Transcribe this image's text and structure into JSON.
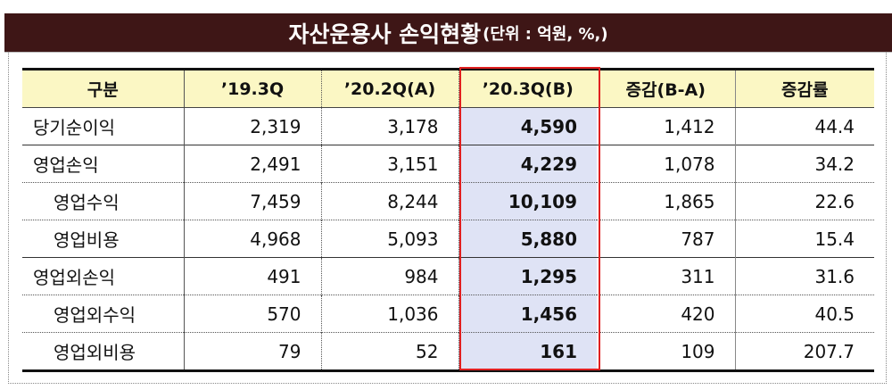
{
  "title": {
    "main": "자산운용사 손익현황",
    "unit": "(단위 : 억원, %,)"
  },
  "table": {
    "headers": [
      "구분",
      "’19.3Q",
      "’20.2Q(A)",
      "’20.3Q(B)",
      "증감(B-A)",
      "증감률"
    ],
    "rows": [
      {
        "label": "당기순이익",
        "level": 0,
        "values": [
          "2,319",
          "3,178",
          "4,590",
          "1,412",
          "44.4"
        ]
      },
      {
        "label": "영업손익",
        "level": 0,
        "values": [
          "2,491",
          "3,151",
          "4,229",
          "1,078",
          "34.2"
        ]
      },
      {
        "label": "영업수익",
        "level": 1,
        "values": [
          "7,459",
          "8,244",
          "10,109",
          "1,865",
          "22.6"
        ]
      },
      {
        "label": "영업비용",
        "level": 1,
        "values": [
          "4,968",
          "5,093",
          "5,880",
          "787",
          "15.4"
        ]
      },
      {
        "label": "영업외손익",
        "level": 0,
        "values": [
          "491",
          "984",
          "1,295",
          "311",
          "31.6"
        ]
      },
      {
        "label": "영업외수익",
        "level": 1,
        "values": [
          "570",
          "1,036",
          "1,456",
          "420",
          "40.5"
        ]
      },
      {
        "label": "영업외비용",
        "level": 1,
        "values": [
          "79",
          "52",
          "161",
          "109",
          "207.7"
        ]
      }
    ],
    "highlight_column_index": 3
  },
  "colors": {
    "title_bg": "#3e1616",
    "header_bg": "#fbf7c4",
    "highlight_bg": "#dfe3f5",
    "highlight_border": "#e02020"
  }
}
